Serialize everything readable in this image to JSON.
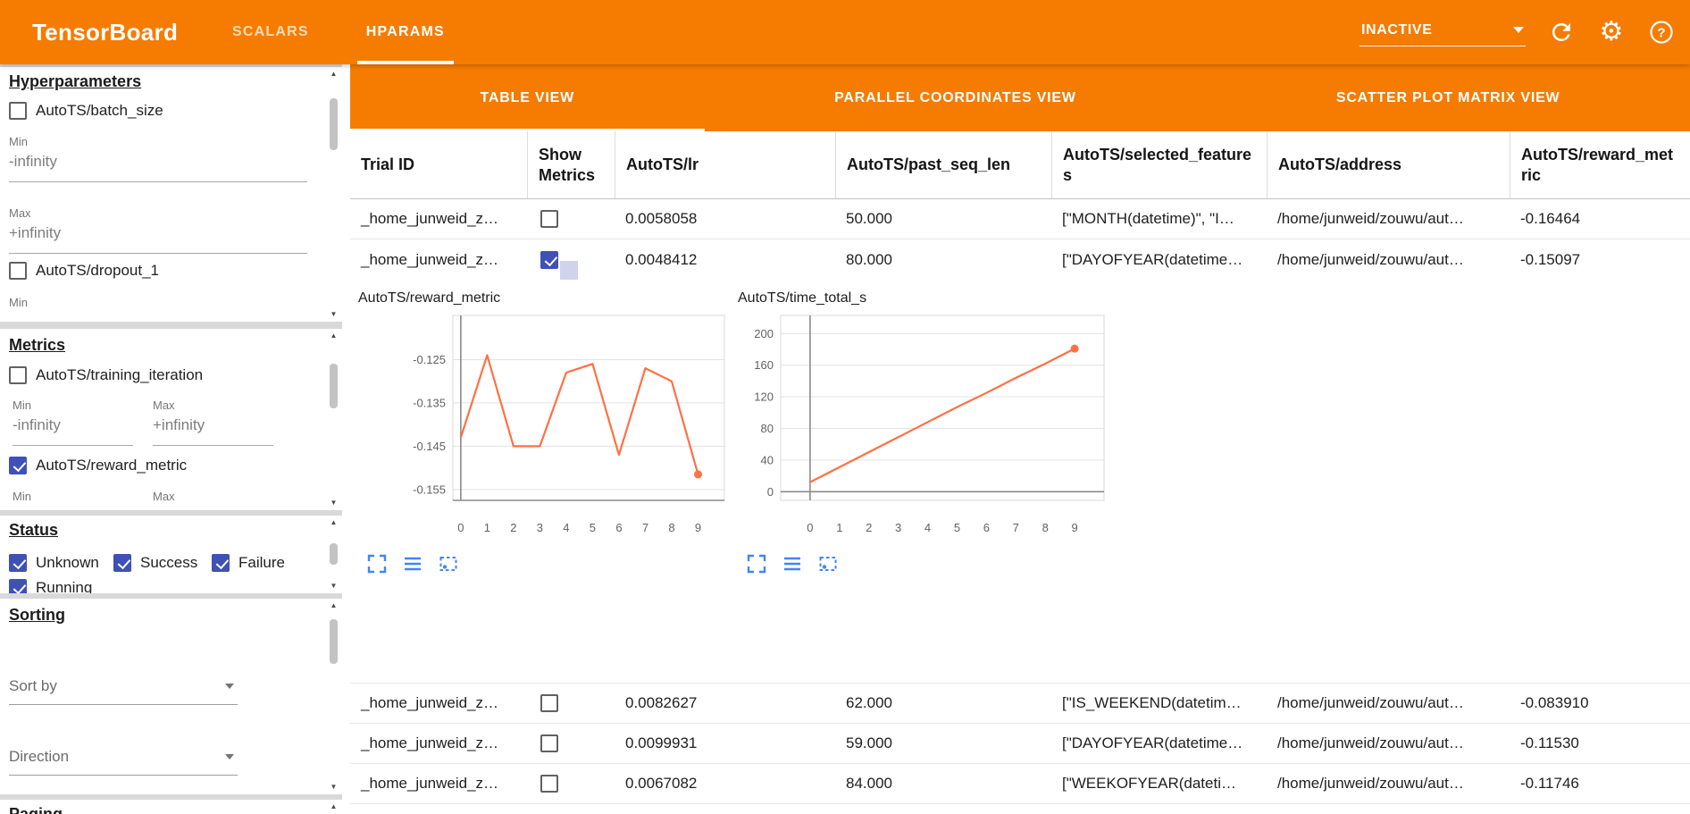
{
  "header": {
    "title": "TensorBoard",
    "nav_tabs": [
      {
        "label": "SCALARS",
        "active": false
      },
      {
        "label": "HPARAMS",
        "active": true
      }
    ],
    "run_selector_value": "INACTIVE"
  },
  "sidebar": {
    "min_label": "Min",
    "max_label": "Max",
    "hyperparameters": {
      "heading": "Hyperparameters",
      "items": [
        {
          "label": "AutoTS/batch_size",
          "checked": false,
          "min": "-infinity",
          "max": "+infinity"
        },
        {
          "label": "AutoTS/dropout_1",
          "checked": false
        }
      ]
    },
    "metrics": {
      "heading": "Metrics",
      "items": [
        {
          "label": "AutoTS/training_iteration",
          "checked": false,
          "min": "-infinity",
          "max": "+infinity"
        },
        {
          "label": "AutoTS/reward_metric",
          "checked": true
        }
      ]
    },
    "status": {
      "heading": "Status",
      "items": [
        {
          "label": "Unknown",
          "checked": true
        },
        {
          "label": "Success",
          "checked": true
        },
        {
          "label": "Failure",
          "checked": true
        },
        {
          "label": "Running",
          "checked": true
        }
      ]
    },
    "sorting": {
      "heading": "Sorting",
      "sort_by_placeholder": "Sort by",
      "direction_placeholder": "Direction"
    },
    "paging": {
      "heading": "Paging"
    }
  },
  "main": {
    "view_tabs": [
      {
        "label": "TABLE VIEW",
        "active": true
      },
      {
        "label": "PARALLEL COORDINATES VIEW",
        "active": false
      },
      {
        "label": "SCATTER PLOT MATRIX VIEW",
        "active": false
      }
    ],
    "table": {
      "columns": [
        "Trial ID",
        "Show Metrics",
        "AutoTS/lr",
        "AutoTS/past_seq_len",
        "AutoTS/selected_features",
        "AutoTS/address",
        "AutoTS/reward_metric"
      ],
      "rows": [
        {
          "trial_id": "_home_junweid_z…",
          "show_metrics": false,
          "lr": "0.0058058",
          "past_seq_len": "50.000",
          "selected_features": "[\"MONTH(datetime)\", \"I…",
          "address": "/home/junweid/zouwu/aut…",
          "reward_metric": "-0.16464"
        },
        {
          "trial_id": "_home_junweid_z…",
          "show_metrics": true,
          "lr": "0.0048412",
          "past_seq_len": "80.000",
          "selected_features": "[\"DAYOFYEAR(datetime…",
          "address": "/home/junweid/zouwu/aut…",
          "reward_metric": "-0.15097"
        },
        {
          "trial_id": "_home_junweid_z…",
          "show_metrics": false,
          "lr": "0.0082627",
          "past_seq_len": "62.000",
          "selected_features": "[\"IS_WEEKEND(datetim…",
          "address": "/home/junweid/zouwu/aut…",
          "reward_metric": "-0.083910"
        },
        {
          "trial_id": "_home_junweid_z…",
          "show_metrics": false,
          "lr": "0.0099931",
          "past_seq_len": "59.000",
          "selected_features": "[\"DAYOFYEAR(datetime…",
          "address": "/home/junweid/zouwu/aut…",
          "reward_metric": "-0.11530"
        },
        {
          "trial_id": "_home_junweid_z…",
          "show_metrics": false,
          "lr": "0.0067082",
          "past_seq_len": "84.000",
          "selected_features": "[\"WEEKOFYEAR(dateti…",
          "address": "/home/junweid/zouwu/aut…",
          "reward_metric": "-0.11746"
        }
      ]
    }
  },
  "chart_data": [
    {
      "type": "line",
      "title": "AutoTS/reward_metric",
      "x": [
        0,
        1,
        2,
        3,
        4,
        5,
        6,
        7,
        8,
        9
      ],
      "values": [
        -0.143,
        -0.124,
        -0.145,
        -0.145,
        -0.128,
        -0.126,
        -0.147,
        -0.127,
        -0.13,
        -0.1515
      ],
      "xlim": [
        -0.3,
        10
      ],
      "ylim": [
        -0.1575,
        -0.1148
      ],
      "yticks": [
        -0.125,
        -0.135,
        -0.145,
        -0.155
      ],
      "xticks": [
        0,
        1,
        2,
        3,
        4,
        5,
        6,
        7,
        8,
        9
      ],
      "grid": true,
      "legend": "none",
      "color": "#ff7043",
      "endpoint_dot": true
    },
    {
      "type": "line",
      "title": "AutoTS/time_total_s",
      "x": [
        0,
        1,
        2,
        3,
        4,
        5,
        6,
        7,
        8,
        9
      ],
      "values": [
        12,
        31,
        50,
        69,
        88,
        107,
        125,
        144,
        162,
        181
      ],
      "xlim": [
        -1,
        10
      ],
      "ylim": [
        -11,
        223
      ],
      "yticks": [
        0,
        40,
        80,
        120,
        160,
        200
      ],
      "xticks": [
        0,
        1,
        2,
        3,
        4,
        5,
        6,
        7,
        8,
        9
      ],
      "grid": true,
      "legend": "none",
      "color": "#ff7043",
      "endpoint_dot": true
    }
  ],
  "colors": {
    "accent_orange": "#f57c00",
    "series_orange": "#ff7043",
    "checkbox_indigo": "#3f51b5",
    "tool_icon_blue": "#4285f4"
  }
}
